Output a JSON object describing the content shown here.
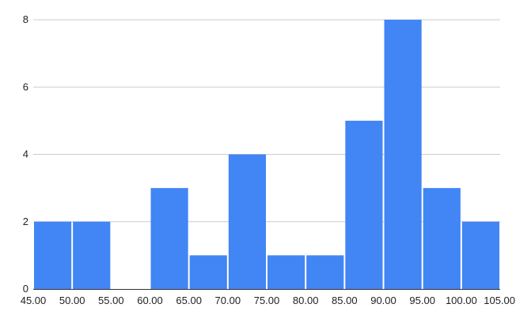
{
  "chart_data": {
    "type": "bar",
    "title": "",
    "xlabel": "",
    "ylabel": "",
    "bins": [
      {
        "x0": 45,
        "x1": 50,
        "value": 2
      },
      {
        "x0": 50,
        "x1": 55,
        "value": 2
      },
      {
        "x0": 55,
        "x1": 60,
        "value": 0
      },
      {
        "x0": 60,
        "x1": 65,
        "value": 3
      },
      {
        "x0": 65,
        "x1": 70,
        "value": 1
      },
      {
        "x0": 70,
        "x1": 75,
        "value": 4
      },
      {
        "x0": 75,
        "x1": 80,
        "value": 1
      },
      {
        "x0": 80,
        "x1": 85,
        "value": 1
      },
      {
        "x0": 85,
        "x1": 90,
        "value": 5
      },
      {
        "x0": 90,
        "x1": 95,
        "value": 8
      },
      {
        "x0": 95,
        "x1": 100,
        "value": 3
      },
      {
        "x0": 100,
        "x1": 105,
        "value": 2
      }
    ],
    "xlim": [
      45,
      105
    ],
    "ylim": [
      0,
      8
    ],
    "x_tick_labels": [
      "45.00",
      "50.00",
      "55.00",
      "60.00",
      "65.00",
      "70.00",
      "75.00",
      "80.00",
      "85.00",
      "90.00",
      "95.00",
      "100.00",
      "105.00"
    ],
    "y_tick_labels": [
      "0",
      "2",
      "4",
      "6",
      "8"
    ],
    "grid": true,
    "legend": "none",
    "colors": {
      "bar": "#4285f4",
      "grid": "#cccccc",
      "axis": "#333333",
      "text": "#222222"
    }
  }
}
